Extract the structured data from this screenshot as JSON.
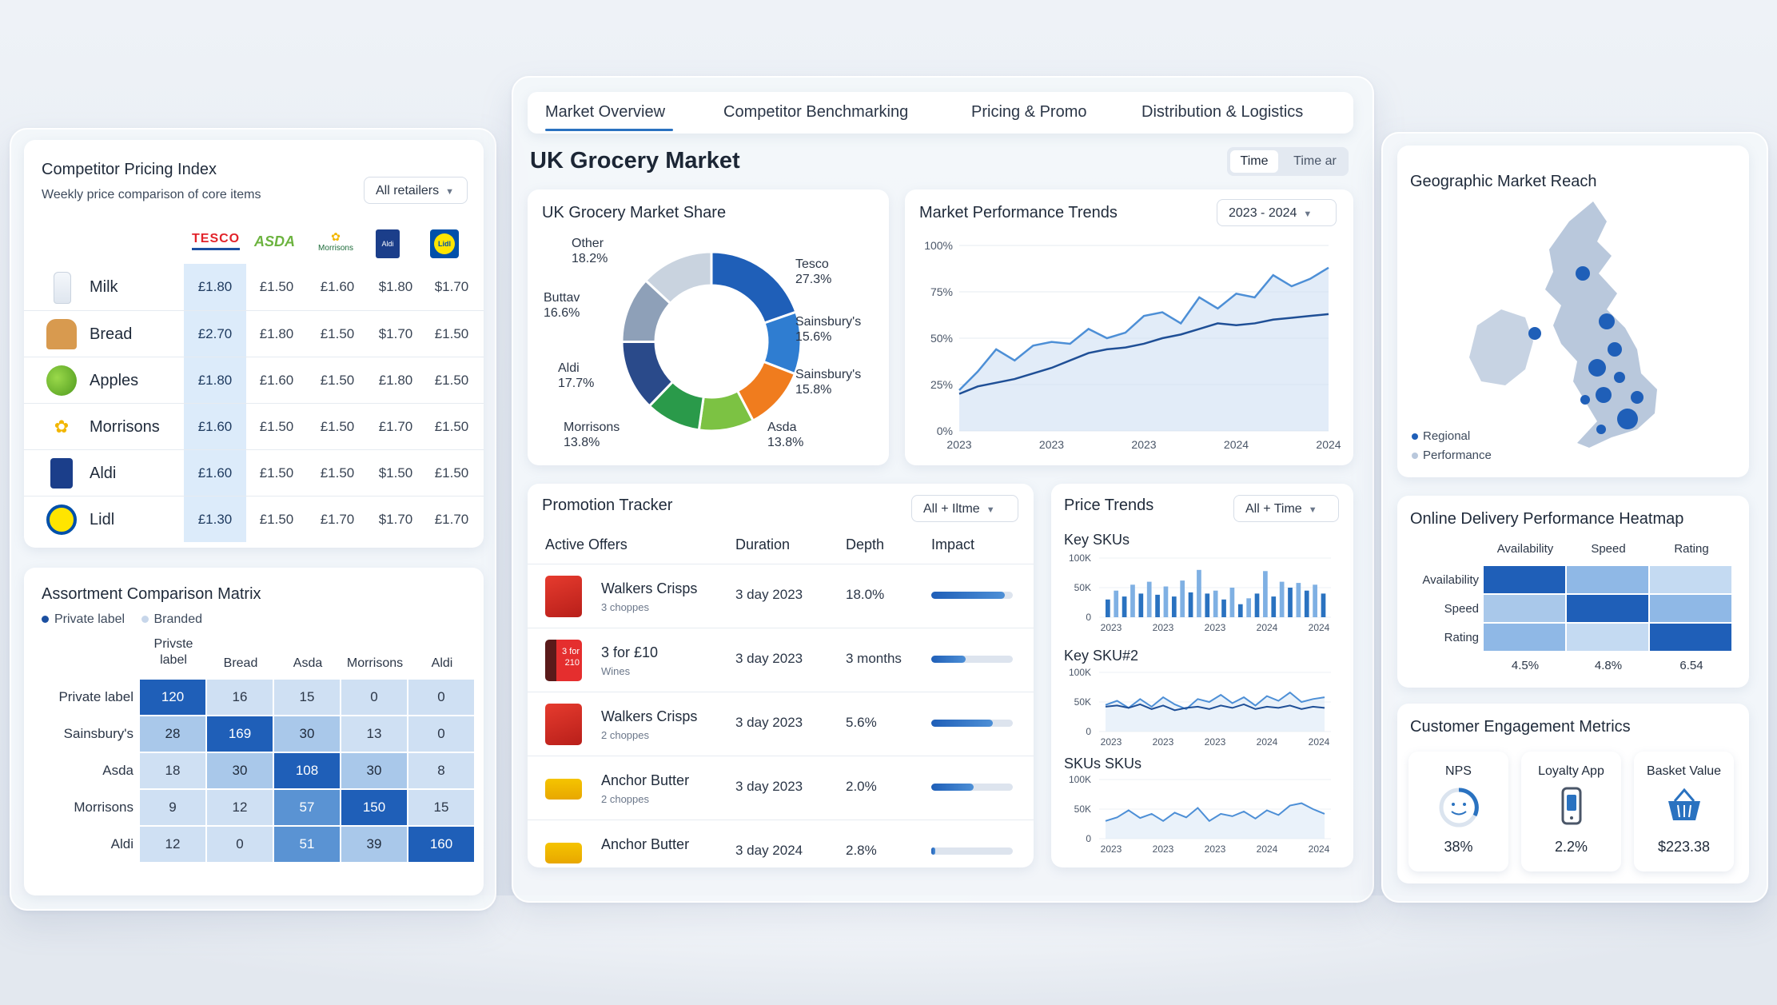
{
  "tabs": [
    "Market Overview",
    "Competitor Benchmarking",
    "Pricing & Promo",
    "Distribution & Logistics"
  ],
  "header": {
    "title": "UK Grocery Market",
    "time_buttons": [
      "Time",
      "Time ar"
    ]
  },
  "pricing": {
    "title": "Competitor Pricing Index",
    "subtitle": "Weekly price comparison of core items",
    "dropdown": "All retailers",
    "retailers": [
      "TESCO",
      "ASDA",
      "Morrisons",
      "Aldi",
      "Lidl"
    ],
    "rows": [
      {
        "item": "Milk",
        "icon": "milk-icon",
        "prices": [
          "£1.80",
          "£1.50",
          "£1.60",
          "$1.80",
          "$1.70"
        ]
      },
      {
        "item": "Bread",
        "icon": "bread-icon",
        "prices": [
          "£2.70",
          "£1.80",
          "£1.50",
          "$1.70",
          "£1.50"
        ]
      },
      {
        "item": "Apples",
        "icon": "apples-icon",
        "prices": [
          "£1.80",
          "£1.60",
          "£1.50",
          "£1.80",
          "£1.50"
        ]
      },
      {
        "item": "Morrisons",
        "icon": "morrisons-logo-icon",
        "prices": [
          "£1.60",
          "£1.50",
          "£1.50",
          "£1.70",
          "£1.50"
        ]
      },
      {
        "item": "Aldi",
        "icon": "aldi-logo-icon",
        "prices": [
          "£1.60",
          "£1.50",
          "£1.50",
          "$1.50",
          "£1.50"
        ]
      },
      {
        "item": "Lidl",
        "icon": "lidl-logo-icon",
        "prices": [
          "£1.30",
          "£1.50",
          "£1.70",
          "$1.70",
          "£1.70"
        ]
      }
    ]
  },
  "assortment": {
    "title": "Assortment Comparison Matrix",
    "legend": [
      "Private label",
      "Branded"
    ],
    "cols": [
      "Private label",
      "Bread",
      "Asda",
      "Morrisons",
      "Aldi"
    ],
    "col_lines": [
      [
        "Privste",
        "label"
      ],
      [
        "Bread"
      ],
      [
        "Asda"
      ],
      [
        "Morrisons"
      ],
      [
        "Aldi"
      ]
    ],
    "rows": [
      "Private label",
      "Sainsbury's",
      "Asda",
      "Morrisons",
      "Aldi"
    ],
    "values": [
      [
        120,
        16,
        15,
        0,
        0
      ],
      [
        28,
        169,
        30,
        13,
        0
      ],
      [
        18,
        30,
        108,
        30,
        8
      ],
      [
        9,
        12,
        57,
        150,
        15
      ],
      [
        12,
        0,
        51,
        39,
        160
      ]
    ]
  },
  "market_share": {
    "title": "UK Grocery Market Share",
    "labels": [
      {
        "name": "Other",
        "value": "18.2%"
      },
      {
        "name": "Tesco",
        "value": "27.3%"
      },
      {
        "name": "Buttav",
        "value": "16.6%"
      },
      {
        "name": "Sainsbury's",
        "value": "15.6%"
      },
      {
        "name": "Aldi",
        "value": "17.7%"
      },
      {
        "name": "Sainsbury's",
        "value": "15.8%"
      },
      {
        "name": "Morrisons",
        "value": "13.8%"
      },
      {
        "name": "Asda",
        "value": "13.8%"
      }
    ]
  },
  "trends": {
    "title": "Market Performance Trends",
    "dropdown": "2023 - 2024"
  },
  "promo": {
    "title": "Promotion Tracker",
    "dropdown": "All + Iltme",
    "headers": [
      "Active Offers",
      "Duration",
      "Depth",
      "Impact"
    ],
    "rows": [
      {
        "name": "Walkers Crisps",
        "sub": "3 choppes",
        "duration": "3 day 2023",
        "depth": "18.0%",
        "impact": 0.9,
        "icon": "crisps-icon"
      },
      {
        "name": "3 for £10",
        "sub": "Wines",
        "duration": "3 day 2023",
        "depth": "3 months",
        "impact": 0.42,
        "icon": "wine-icon"
      },
      {
        "name": "Walkers Crisps",
        "sub": "2 choppes",
        "duration": "3 day 2023",
        "depth": "5.6%",
        "impact": 0.75,
        "icon": "crisps-icon"
      },
      {
        "name": "Anchor Butter",
        "sub": "2 choppes",
        "duration": "3 day 2023",
        "depth": "2.0%",
        "impact": 0.52,
        "icon": "butter-icon"
      },
      {
        "name": "Anchor Butter",
        "sub": "",
        "duration": "3 day 2024",
        "depth": "2.8%",
        "impact": 0.05,
        "icon": "butter-icon"
      }
    ],
    "icon_texts": [
      "3 for",
      "210"
    ]
  },
  "price_trends": {
    "title": "Price Trends",
    "dropdown": "All + Time",
    "series_titles": [
      "Key SKUs",
      "Key SKU#2",
      "SKUs SKUs"
    ]
  },
  "geo": {
    "title": "Geographic Market Reach",
    "legend": [
      "Regional",
      "Performance"
    ]
  },
  "heatmap": {
    "title": "Online Delivery Performance Heatmap",
    "cols": [
      "Availability",
      "Speed",
      "Rating"
    ],
    "rows": [
      "Availability",
      "Speed",
      "Rating"
    ],
    "footer": [
      "4.5%",
      "4.8%",
      "6.54"
    ]
  },
  "engagement": {
    "title": "Customer Engagement Metrics",
    "items": [
      {
        "label": "NPS",
        "value": "38%"
      },
      {
        "label": "Loyalty App",
        "value": "2.2%"
      },
      {
        "label": "Basket Value",
        "value": "$223.38"
      }
    ]
  },
  "chart_data": [
    {
      "type": "pie",
      "title": "UK Grocery Market Share",
      "categories": [
        "Tesco",
        "Sainsbury's",
        "Sainsbury's",
        "Asda",
        "Morrisons",
        "Aldi",
        "Buttav",
        "Other"
      ],
      "values": [
        27.3,
        15.6,
        15.8,
        13.8,
        13.8,
        17.7,
        16.6,
        18.2
      ],
      "colors": [
        "#1f5fb8",
        "#2f7dd1",
        "#f07c1e",
        "#7cc243",
        "#2a9a4a",
        "#2a4a8a",
        "#8ea0b8",
        "#c9d3df"
      ]
    },
    {
      "type": "line",
      "title": "Market Performance Trends",
      "x_ticks": [
        "2023",
        "2023",
        "2023",
        "2024",
        "2024"
      ],
      "y_ticks": [
        "100%",
        "75%",
        "50%",
        "25%",
        "0%"
      ],
      "ylim": [
        0,
        100
      ],
      "series": [
        {
          "values": [
            22,
            32,
            44,
            38,
            46,
            48,
            47,
            55,
            50,
            53,
            62,
            64,
            58,
            72,
            66,
            74,
            72,
            84,
            78,
            82,
            88
          ]
        },
        {
          "values": [
            20,
            24,
            26,
            28,
            31,
            34,
            38,
            42,
            44,
            45,
            47,
            50,
            52,
            55,
            58,
            57,
            58,
            60,
            61,
            62,
            63
          ]
        }
      ]
    },
    {
      "type": "bar",
      "title": "Key SKUs",
      "x_ticks": [
        "2023",
        "2023",
        "2023",
        "2024",
        "2024"
      ],
      "y_ticks": [
        "100K",
        "50K",
        "0"
      ],
      "ylim": [
        0,
        100
      ],
      "values": [
        30,
        45,
        35,
        55,
        40,
        60,
        38,
        52,
        35,
        62,
        42,
        80,
        40,
        45,
        30,
        50,
        22,
        32,
        40,
        78,
        35,
        60,
        50,
        58,
        45,
        55,
        40
      ]
    },
    {
      "type": "line",
      "title": "Key SKU#2",
      "x_ticks": [
        "2023",
        "2023",
        "2023",
        "2024",
        "2024"
      ],
      "y_ticks": [
        "100K",
        "50K",
        "0"
      ],
      "ylim": [
        0,
        100
      ],
      "series": [
        {
          "values": [
            45,
            52,
            40,
            55,
            42,
            58,
            46,
            38,
            55,
            50,
            62,
            48,
            58,
            44,
            60,
            52,
            66,
            50,
            55,
            58
          ]
        },
        {
          "values": [
            42,
            44,
            40,
            46,
            38,
            44,
            36,
            40,
            42,
            38,
            44,
            40,
            46,
            38,
            42,
            40,
            44,
            38,
            42,
            40
          ]
        }
      ]
    },
    {
      "type": "line",
      "title": "SKUs SKUs",
      "x_ticks": [
        "2023",
        "2023",
        "2023",
        "2024",
        "2024"
      ],
      "y_ticks": [
        "100K",
        "50K",
        "0"
      ],
      "ylim": [
        0,
        100
      ],
      "series": [
        {
          "values": [
            30,
            36,
            48,
            35,
            42,
            30,
            44,
            36,
            52,
            30,
            42,
            38,
            46,
            34,
            48,
            40,
            56,
            60,
            50,
            42
          ]
        }
      ]
    }
  ]
}
